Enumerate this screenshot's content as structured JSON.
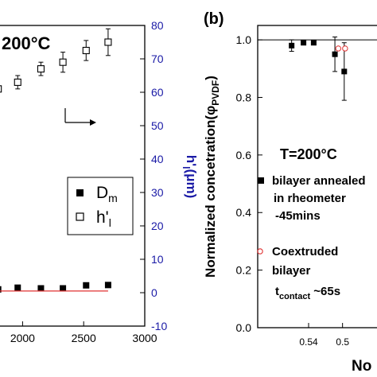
{
  "chart_data": [
    {
      "type": "scatter",
      "panel": "(a)",
      "annotation_temp": "200°C",
      "x_ticks": [
        "2000",
        "2500",
        "3000"
      ],
      "xlim": [
        1750,
        3000
      ],
      "y2_label": "h'",
      "y2_label_sub": "l",
      "y2_label_unit": "(μm)",
      "y2_ticks": [
        "-10",
        "0",
        "10",
        "20",
        "30",
        "40",
        "50",
        "60",
        "70",
        "80"
      ],
      "y2_lim": [
        -10,
        80
      ],
      "y2_color": "#1a1aa6",
      "legend": [
        {
          "symbol": "filled-square",
          "label": "D",
          "sub": "m"
        },
        {
          "symbol": "open-square",
          "label": "h'",
          "sub": "l"
        }
      ],
      "series": [
        {
          "name": "h'l",
          "axis": "y2",
          "marker": "open-square",
          "x": [
            1800,
            1960,
            2150,
            2330,
            2520,
            2700
          ],
          "y": [
            61,
            63,
            67,
            69,
            72.5,
            75
          ],
          "err": [
            0,
            2,
            2,
            3,
            3,
            4
          ]
        },
        {
          "name": "Dm",
          "axis": "y2",
          "marker": "filled-square",
          "x": [
            1800,
            1960,
            2150,
            2330,
            2520,
            2700
          ],
          "y": [
            1,
            1.5,
            1.3,
            1.3,
            2.2,
            2.3
          ]
        },
        {
          "name": "fit",
          "axis": "y2",
          "type": "line",
          "color": "#e03030",
          "x": [
            1750,
            2700
          ],
          "y": [
            0.5,
            0.5
          ]
        }
      ],
      "arrow": "right"
    },
    {
      "type": "scatter",
      "panel": "(b)",
      "ylabel": "Normalized concetration(φ",
      "ylabel_sub": "PVDF",
      "ylabel_end": ")",
      "y_ticks": [
        "0.0",
        "0.2",
        "0.4",
        "0.6",
        "0.8",
        "1.0"
      ],
      "ylim": [
        0,
        1.05
      ],
      "x_ticks": [
        "0.54",
        "0.5"
      ],
      "xlabel": "No",
      "xlim": [
        0.51,
        0.585
      ],
      "annotation_temp": "T=200°C",
      "legend": [
        {
          "symbol": "filled-square",
          "lines": [
            "bilayer annealed",
            "in rheometer",
            "-45mins"
          ]
        },
        {
          "symbol": "open-circle",
          "color": "#e03030",
          "lines": [
            "Coextruded",
            "bilayer"
          ],
          "extra": "t",
          "extra_sub": "contact",
          "extra_end": " ~65s"
        }
      ],
      "series": [
        {
          "name": "bilayer annealed in rheometer -45mins",
          "marker": "filled-square",
          "x": [
            0.53,
            0.537,
            0.543,
            0.5555,
            0.561
          ],
          "y": [
            0.98,
            0.99,
            0.99,
            0.95,
            0.89
          ],
          "err": [
            0.02,
            0.005,
            0.005,
            0.06,
            0.1
          ]
        },
        {
          "name": "Coextruded bilayer",
          "marker": "open-circle",
          "x": [
            0.5575,
            0.5615
          ],
          "y": [
            0.97,
            0.97
          ]
        }
      ],
      "ref_line": 1.0
    }
  ]
}
